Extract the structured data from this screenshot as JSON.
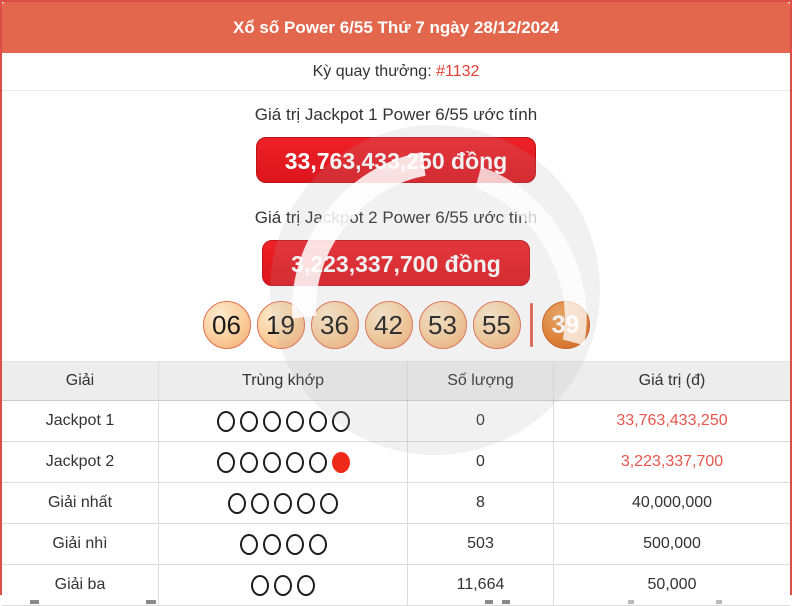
{
  "header": {
    "title": "Xổ số Power 6/55 Thứ 7 ngày 28/12/2024"
  },
  "draw": {
    "label": "Kỳ quay thưởng: ",
    "number": "#1132"
  },
  "jackpot1": {
    "label": "Giá trị Jackpot 1 Power 6/55 ước tính",
    "value": "33,763,433,250 đồng"
  },
  "jackpot2": {
    "label": "Giá trị Jackpot 2 Power 6/55 ước tính",
    "value": "3,223,337,700 đồng"
  },
  "balls": {
    "main": [
      "06",
      "19",
      "36",
      "42",
      "53",
      "55"
    ],
    "power": "39"
  },
  "table": {
    "headers": [
      "Giải",
      "Trùng khớp",
      "Số lượng",
      "Giá trị (đ)"
    ],
    "rows": [
      {
        "prize": "Jackpot 1",
        "match_open": 6,
        "match_filled": 0,
        "count": "0",
        "value": "33,763,433,250",
        "value_red": true
      },
      {
        "prize": "Jackpot 2",
        "match_open": 5,
        "match_filled": 1,
        "count": "0",
        "value": "3,223,337,700",
        "value_red": true
      },
      {
        "prize": "Giải nhất",
        "match_open": 5,
        "match_filled": 0,
        "count": "8",
        "value": "40,000,000",
        "value_red": false
      },
      {
        "prize": "Giải nhì",
        "match_open": 4,
        "match_filled": 0,
        "count": "503",
        "value": "500,000",
        "value_red": false
      },
      {
        "prize": "Giải ba",
        "match_open": 3,
        "match_filled": 0,
        "count": "11,664",
        "value": "50,000",
        "value_red": false
      }
    ]
  },
  "colors": {
    "header_bg": "#e2674c",
    "border_red": "#dd4f46",
    "button_red": "#e61c23",
    "accent_red": "#e53e35",
    "value_red": "#e8564d",
    "ball_orange": "#f4ab70",
    "powerball_orange": "#e87e26"
  }
}
